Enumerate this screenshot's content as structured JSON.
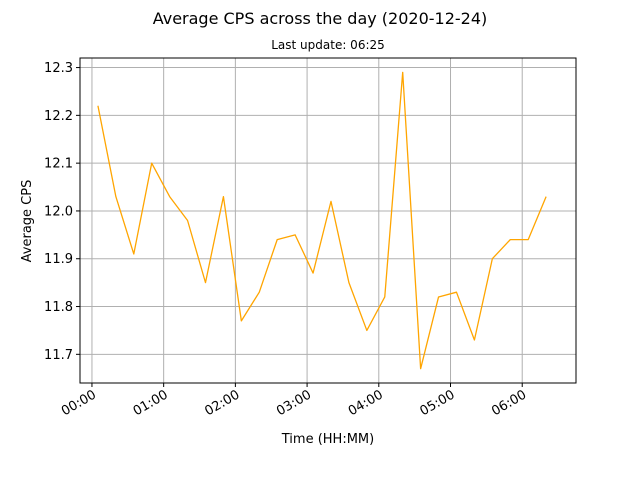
{
  "chart_data": {
    "type": "line",
    "title": "Average CPS across the day (2020-12-24)",
    "subtitle": "Last update: 06:25",
    "xlabel": "Time (HH:MM)",
    "ylabel": "Average CPS",
    "x": [
      "00:05",
      "00:20",
      "00:35",
      "00:50",
      "01:05",
      "01:20",
      "01:35",
      "01:50",
      "02:05",
      "02:20",
      "02:35",
      "02:50",
      "03:05",
      "03:20",
      "03:35",
      "03:50",
      "04:05",
      "04:20",
      "04:35",
      "04:50",
      "05:05",
      "05:20",
      "05:35",
      "05:50",
      "06:05",
      "06:20"
    ],
    "series": [
      {
        "color": "#ffa500",
        "values": [
          12.22,
          12.03,
          11.91,
          12.1,
          12.03,
          11.98,
          11.85,
          12.03,
          11.77,
          11.83,
          11.94,
          11.95,
          11.87,
          12.02,
          11.85,
          11.75,
          11.82,
          12.29,
          11.67,
          11.82,
          11.83,
          11.73,
          11.9,
          11.94,
          11.94,
          12.03
        ]
      }
    ],
    "xlim": [
      "-00:10",
      "06:45"
    ],
    "ylim": [
      11.64,
      12.32
    ],
    "x_ticks": [
      "00:00",
      "01:00",
      "02:00",
      "03:00",
      "04:00",
      "05:00",
      "06:00"
    ],
    "y_ticks": [
      "11.7",
      "11.8",
      "11.9",
      "12.0",
      "12.1",
      "12.2",
      "12.3"
    ],
    "grid": true,
    "grid_color": "#b0b0b0"
  }
}
